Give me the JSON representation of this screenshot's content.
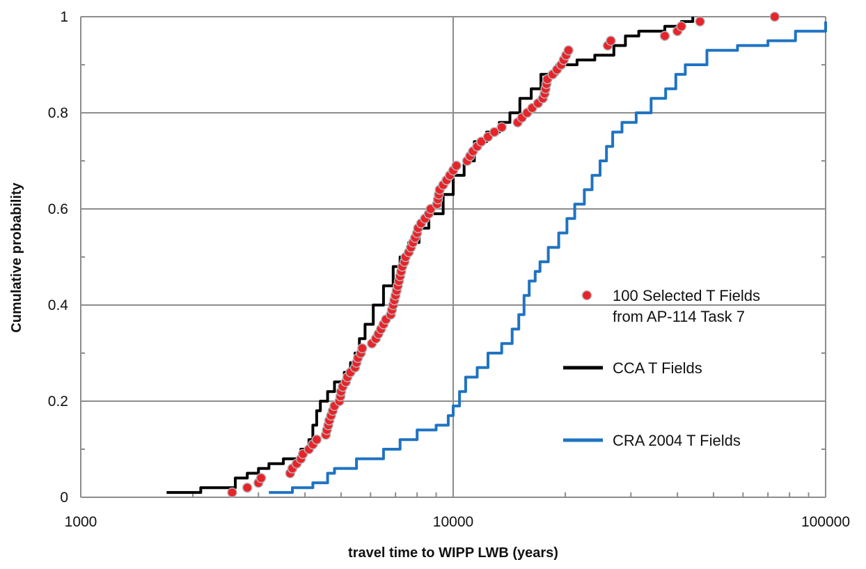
{
  "chart_data": {
    "type": "scatter",
    "title": "",
    "xlabel": "travel time to WIPP LWB (years)",
    "ylabel": "Cumulative probability",
    "xscale": "log",
    "xlim": [
      1000,
      100000
    ],
    "ylim": [
      0,
      1
    ],
    "x_ticks": [
      1000,
      10000,
      100000
    ],
    "x_tick_labels": [
      "1000",
      "10000",
      "100000"
    ],
    "y_ticks": [
      0,
      0.2,
      0.4,
      0.6,
      0.8,
      1
    ],
    "y_tick_labels": [
      "0",
      "0.2",
      "0.4",
      "0.6",
      "0.8",
      "1"
    ],
    "grid": true,
    "legend_position": "right",
    "series": [
      {
        "name": "100 Selected T Fields from AP-114 Task 7",
        "legend_lines": [
          "100 Selected T Fields",
          "from AP-114 Task 7"
        ],
        "kind": "markers",
        "color": "#e8232a",
        "points": [
          [
            2550,
            0.01
          ],
          [
            2800,
            0.02
          ],
          [
            3000,
            0.03
          ],
          [
            3050,
            0.04
          ],
          [
            3650,
            0.05
          ],
          [
            3700,
            0.06
          ],
          [
            3800,
            0.07
          ],
          [
            3900,
            0.08
          ],
          [
            3950,
            0.09
          ],
          [
            4100,
            0.1
          ],
          [
            4200,
            0.11
          ],
          [
            4300,
            0.12
          ],
          [
            4550,
            0.13
          ],
          [
            4580,
            0.14
          ],
          [
            4620,
            0.15
          ],
          [
            4650,
            0.16
          ],
          [
            4700,
            0.17
          ],
          [
            4750,
            0.18
          ],
          [
            4800,
            0.19
          ],
          [
            4950,
            0.2
          ],
          [
            4980,
            0.21
          ],
          [
            5000,
            0.22
          ],
          [
            5050,
            0.23
          ],
          [
            5150,
            0.24
          ],
          [
            5200,
            0.25
          ],
          [
            5300,
            0.26
          ],
          [
            5450,
            0.27
          ],
          [
            5500,
            0.28
          ],
          [
            5550,
            0.29
          ],
          [
            5650,
            0.3
          ],
          [
            5700,
            0.31
          ],
          [
            6050,
            0.32
          ],
          [
            6200,
            0.33
          ],
          [
            6300,
            0.34
          ],
          [
            6400,
            0.35
          ],
          [
            6500,
            0.36
          ],
          [
            6600,
            0.37
          ],
          [
            6800,
            0.38
          ],
          [
            6850,
            0.39
          ],
          [
            6900,
            0.4
          ],
          [
            6950,
            0.41
          ],
          [
            7000,
            0.42
          ],
          [
            7050,
            0.43
          ],
          [
            7100,
            0.44
          ],
          [
            7150,
            0.45
          ],
          [
            7200,
            0.46
          ],
          [
            7250,
            0.47
          ],
          [
            7300,
            0.48
          ],
          [
            7400,
            0.49
          ],
          [
            7450,
            0.5
          ],
          [
            7600,
            0.51
          ],
          [
            7700,
            0.52
          ],
          [
            7800,
            0.53
          ],
          [
            7900,
            0.54
          ],
          [
            8000,
            0.55
          ],
          [
            8050,
            0.56
          ],
          [
            8200,
            0.57
          ],
          [
            8400,
            0.58
          ],
          [
            8600,
            0.59
          ],
          [
            8700,
            0.6
          ],
          [
            9050,
            0.61
          ],
          [
            9100,
            0.62
          ],
          [
            9150,
            0.63
          ],
          [
            9200,
            0.64
          ],
          [
            9400,
            0.65
          ],
          [
            9600,
            0.66
          ],
          [
            9800,
            0.67
          ],
          [
            10000,
            0.68
          ],
          [
            10200,
            0.69
          ],
          [
            10900,
            0.7
          ],
          [
            11100,
            0.71
          ],
          [
            11300,
            0.72
          ],
          [
            11600,
            0.73
          ],
          [
            11900,
            0.74
          ],
          [
            12400,
            0.75
          ],
          [
            12900,
            0.76
          ],
          [
            13500,
            0.77
          ],
          [
            14900,
            0.78
          ],
          [
            15300,
            0.79
          ],
          [
            15800,
            0.8
          ],
          [
            16300,
            0.81
          ],
          [
            16900,
            0.82
          ],
          [
            17400,
            0.83
          ],
          [
            17600,
            0.84
          ],
          [
            17700,
            0.85
          ],
          [
            17800,
            0.86
          ],
          [
            17900,
            0.87
          ],
          [
            18500,
            0.88
          ],
          [
            19000,
            0.89
          ],
          [
            19500,
            0.9
          ],
          [
            19800,
            0.91
          ],
          [
            20100,
            0.92
          ],
          [
            20400,
            0.93
          ],
          [
            26000,
            0.94
          ],
          [
            26500,
            0.95
          ],
          [
            37000,
            0.96
          ],
          [
            40000,
            0.97
          ],
          [
            41000,
            0.98
          ],
          [
            46000,
            0.99
          ],
          [
            73000,
            1.0
          ]
        ]
      },
      {
        "name": "CCA T Fields",
        "kind": "line",
        "color": "#000000",
        "points": [
          [
            1700,
            0.01
          ],
          [
            2100,
            0.02
          ],
          [
            2600,
            0.04
          ],
          [
            2800,
            0.05
          ],
          [
            3000,
            0.06
          ],
          [
            3200,
            0.07
          ],
          [
            3500,
            0.08
          ],
          [
            3900,
            0.1
          ],
          [
            4100,
            0.12
          ],
          [
            4200,
            0.15
          ],
          [
            4300,
            0.18
          ],
          [
            4400,
            0.2
          ],
          [
            4600,
            0.22
          ],
          [
            4800,
            0.24
          ],
          [
            5100,
            0.26
          ],
          [
            5300,
            0.28
          ],
          [
            5450,
            0.3
          ],
          [
            5600,
            0.33
          ],
          [
            5800,
            0.36
          ],
          [
            6100,
            0.4
          ],
          [
            6500,
            0.44
          ],
          [
            6900,
            0.48
          ],
          [
            7200,
            0.5
          ],
          [
            7600,
            0.53
          ],
          [
            8100,
            0.56
          ],
          [
            8600,
            0.59
          ],
          [
            9400,
            0.63
          ],
          [
            10000,
            0.67
          ],
          [
            10700,
            0.7
          ],
          [
            11400,
            0.74
          ],
          [
            12300,
            0.76
          ],
          [
            13300,
            0.78
          ],
          [
            14200,
            0.8
          ],
          [
            15100,
            0.83
          ],
          [
            16200,
            0.85
          ],
          [
            17200,
            0.88
          ],
          [
            19000,
            0.9
          ],
          [
            21500,
            0.91
          ],
          [
            24000,
            0.92
          ],
          [
            27000,
            0.94
          ],
          [
            29000,
            0.96
          ],
          [
            31500,
            0.97
          ],
          [
            37000,
            0.98
          ],
          [
            41000,
            0.99
          ],
          [
            44000,
            1.0
          ]
        ]
      },
      {
        "name": "CRA 2004 T Fields",
        "kind": "line",
        "color": "#1f73c2",
        "points": [
          [
            3200,
            0.01
          ],
          [
            3700,
            0.02
          ],
          [
            4200,
            0.03
          ],
          [
            4600,
            0.05
          ],
          [
            4800,
            0.06
          ],
          [
            5500,
            0.08
          ],
          [
            6500,
            0.1
          ],
          [
            7200,
            0.12
          ],
          [
            8000,
            0.14
          ],
          [
            9000,
            0.15
          ],
          [
            9700,
            0.17
          ],
          [
            10000,
            0.19
          ],
          [
            10400,
            0.22
          ],
          [
            10800,
            0.25
          ],
          [
            11600,
            0.27
          ],
          [
            12400,
            0.3
          ],
          [
            13500,
            0.32
          ],
          [
            14400,
            0.35
          ],
          [
            15000,
            0.38
          ],
          [
            15500,
            0.42
          ],
          [
            16000,
            0.45
          ],
          [
            16600,
            0.47
          ],
          [
            17100,
            0.49
          ],
          [
            18000,
            0.52
          ],
          [
            19200,
            0.55
          ],
          [
            20200,
            0.58
          ],
          [
            21200,
            0.61
          ],
          [
            22500,
            0.64
          ],
          [
            23600,
            0.67
          ],
          [
            24800,
            0.7
          ],
          [
            25800,
            0.73
          ],
          [
            26800,
            0.76
          ],
          [
            28400,
            0.78
          ],
          [
            31000,
            0.8
          ],
          [
            34000,
            0.83
          ],
          [
            37200,
            0.85
          ],
          [
            39600,
            0.88
          ],
          [
            42000,
            0.9
          ],
          [
            48000,
            0.93
          ],
          [
            58000,
            0.94
          ],
          [
            70000,
            0.95
          ],
          [
            83000,
            0.97
          ],
          [
            100000,
            0.99
          ]
        ]
      }
    ]
  }
}
